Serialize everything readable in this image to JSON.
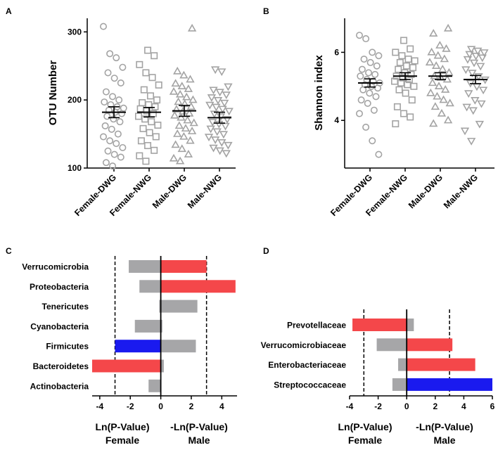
{
  "colors": {
    "grey": "#a6a6a8",
    "red": "#f4474a",
    "blue": "#1a1aef",
    "marker": "#a3a3a3"
  },
  "chart_data": [
    {
      "panel": "A",
      "type": "scatter",
      "ylabel": "OTU Number",
      "ylim": [
        100,
        320
      ],
      "yticks": [
        100,
        200,
        300
      ],
      "categories": [
        "Female-DWG",
        "Female-NWG",
        "Male-DWG",
        "Male-NWG"
      ],
      "markers": [
        "circle",
        "square",
        "triangle-up",
        "triangle-down"
      ],
      "means": [
        182,
        182,
        184,
        174
      ],
      "sem": [
        8,
        7,
        8,
        8
      ],
      "points": [
        [
          308,
          268,
          262,
          248,
          240,
          232,
          225,
          212,
          205,
          200,
          197,
          193,
          190,
          188,
          185,
          182,
          180,
          176,
          172,
          168,
          162,
          157,
          150,
          146,
          140,
          136,
          130,
          125,
          120,
          116,
          108,
          103
        ],
        [
          273,
          265,
          252,
          240,
          233,
          222,
          215,
          206,
          200,
          196,
          193,
          190,
          187,
          184,
          180,
          176,
          172,
          168,
          163,
          158,
          152,
          146,
          140,
          133,
          126,
          118,
          110
        ],
        [
          305,
          242,
          236,
          230,
          224,
          220,
          216,
          212,
          208,
          204,
          200,
          197,
          194,
          190,
          186,
          183,
          180,
          177,
          174,
          170,
          166,
          162,
          158,
          154,
          150,
          146,
          140,
          134,
          128,
          120,
          114,
          110
        ],
        [
          245,
          242,
          220,
          215,
          212,
          208,
          204,
          200,
          196,
          193,
          190,
          187,
          184,
          180,
          176,
          172,
          168,
          165,
          162,
          158,
          154,
          150,
          146,
          142,
          138,
          134,
          130,
          126,
          122
        ]
      ]
    },
    {
      "panel": "B",
      "type": "scatter",
      "ylabel": "Shannon index",
      "ylim": [
        2.6,
        7.0
      ],
      "yticks": [
        4,
        6
      ],
      "categories": [
        "Female-DWG",
        "Female-NWG",
        "Male-DWG",
        "Male-NWG"
      ],
      "markers": [
        "circle",
        "square",
        "triangle-up",
        "triangle-down"
      ],
      "means": [
        5.1,
        5.3,
        5.3,
        5.2
      ],
      "sem": [
        0.12,
        0.1,
        0.1,
        0.12
      ],
      "points": [
        [
          6.5,
          6.4,
          6.0,
          5.9,
          5.8,
          5.7,
          5.6,
          5.5,
          5.4,
          5.35,
          5.3,
          5.2,
          5.15,
          5.1,
          5.05,
          5.0,
          4.95,
          4.9,
          4.8,
          4.7,
          4.6,
          4.5,
          4.3,
          4.2,
          3.8,
          3.4,
          3.0
        ],
        [
          6.35,
          6.1,
          6.0,
          5.9,
          5.8,
          5.75,
          5.7,
          5.6,
          5.55,
          5.5,
          5.4,
          5.35,
          5.3,
          5.25,
          5.2,
          5.15,
          5.1,
          5.05,
          5.0,
          4.9,
          4.8,
          4.6,
          4.4,
          4.2,
          4.1,
          3.9
        ],
        [
          6.7,
          6.55,
          6.2,
          6.1,
          6.0,
          5.9,
          5.8,
          5.7,
          5.6,
          5.5,
          5.4,
          5.3,
          5.25,
          5.2,
          5.1,
          5.0,
          4.9,
          4.8,
          4.7,
          4.6,
          4.5,
          4.4,
          4.2,
          4.0,
          3.9
        ],
        [
          6.1,
          6.05,
          6.0,
          5.95,
          5.9,
          5.85,
          5.8,
          5.7,
          5.6,
          5.5,
          5.4,
          5.3,
          5.2,
          5.1,
          5.0,
          4.9,
          4.8,
          4.6,
          4.5,
          4.4,
          4.3,
          3.9,
          3.7,
          3.4
        ]
      ]
    },
    {
      "panel": "C",
      "type": "bar",
      "orientation": "horizontal",
      "xlim": [
        -4.5,
        5.0
      ],
      "xticks": [
        -4,
        -2,
        0,
        2,
        4
      ],
      "thresholds": [
        -3,
        3
      ],
      "xlabel_left": "Ln(P-Value)\nFemale",
      "xlabel_right": "-Ln(P-Value)\nMale",
      "categories": [
        "Verrucomicrobia",
        "Proteobacteria",
        "Tenericutes",
        "Cyanobacteria",
        "Firmicutes",
        "Bacteroidetes",
        "Actinobacteria"
      ],
      "female": [
        -2.1,
        -1.4,
        -0.1,
        -1.7,
        -3.0,
        -4.5,
        -0.8
      ],
      "male": [
        3.0,
        4.9,
        2.4,
        0.1,
        2.3,
        0.2,
        0.0
      ],
      "female_colors": [
        "grey",
        "grey",
        "grey",
        "grey",
        "blue",
        "red",
        "grey"
      ],
      "male_colors": [
        "red",
        "red",
        "grey",
        "grey",
        "grey",
        "grey",
        "grey"
      ]
    },
    {
      "panel": "D",
      "type": "bar",
      "orientation": "horizontal",
      "xlim": [
        -4.0,
        6.0
      ],
      "xticks": [
        -4,
        -2,
        0,
        2,
        4,
        6
      ],
      "thresholds": [
        -3,
        3
      ],
      "xlabel_left": "Ln(P-Value)\nFemale",
      "xlabel_right": "-Ln(P-Value)\nMale",
      "categories": [
        "Prevotellaceae",
        "Verrucomicrobiaceae",
        "Enterobacteriaceae",
        "Streptococcaceae"
      ],
      "female": [
        -3.8,
        -2.1,
        -0.6,
        -1.0
      ],
      "male": [
        0.5,
        3.2,
        4.8,
        6.0
      ],
      "female_colors": [
        "red",
        "grey",
        "grey",
        "grey"
      ],
      "male_colors": [
        "grey",
        "red",
        "red",
        "blue"
      ]
    }
  ]
}
